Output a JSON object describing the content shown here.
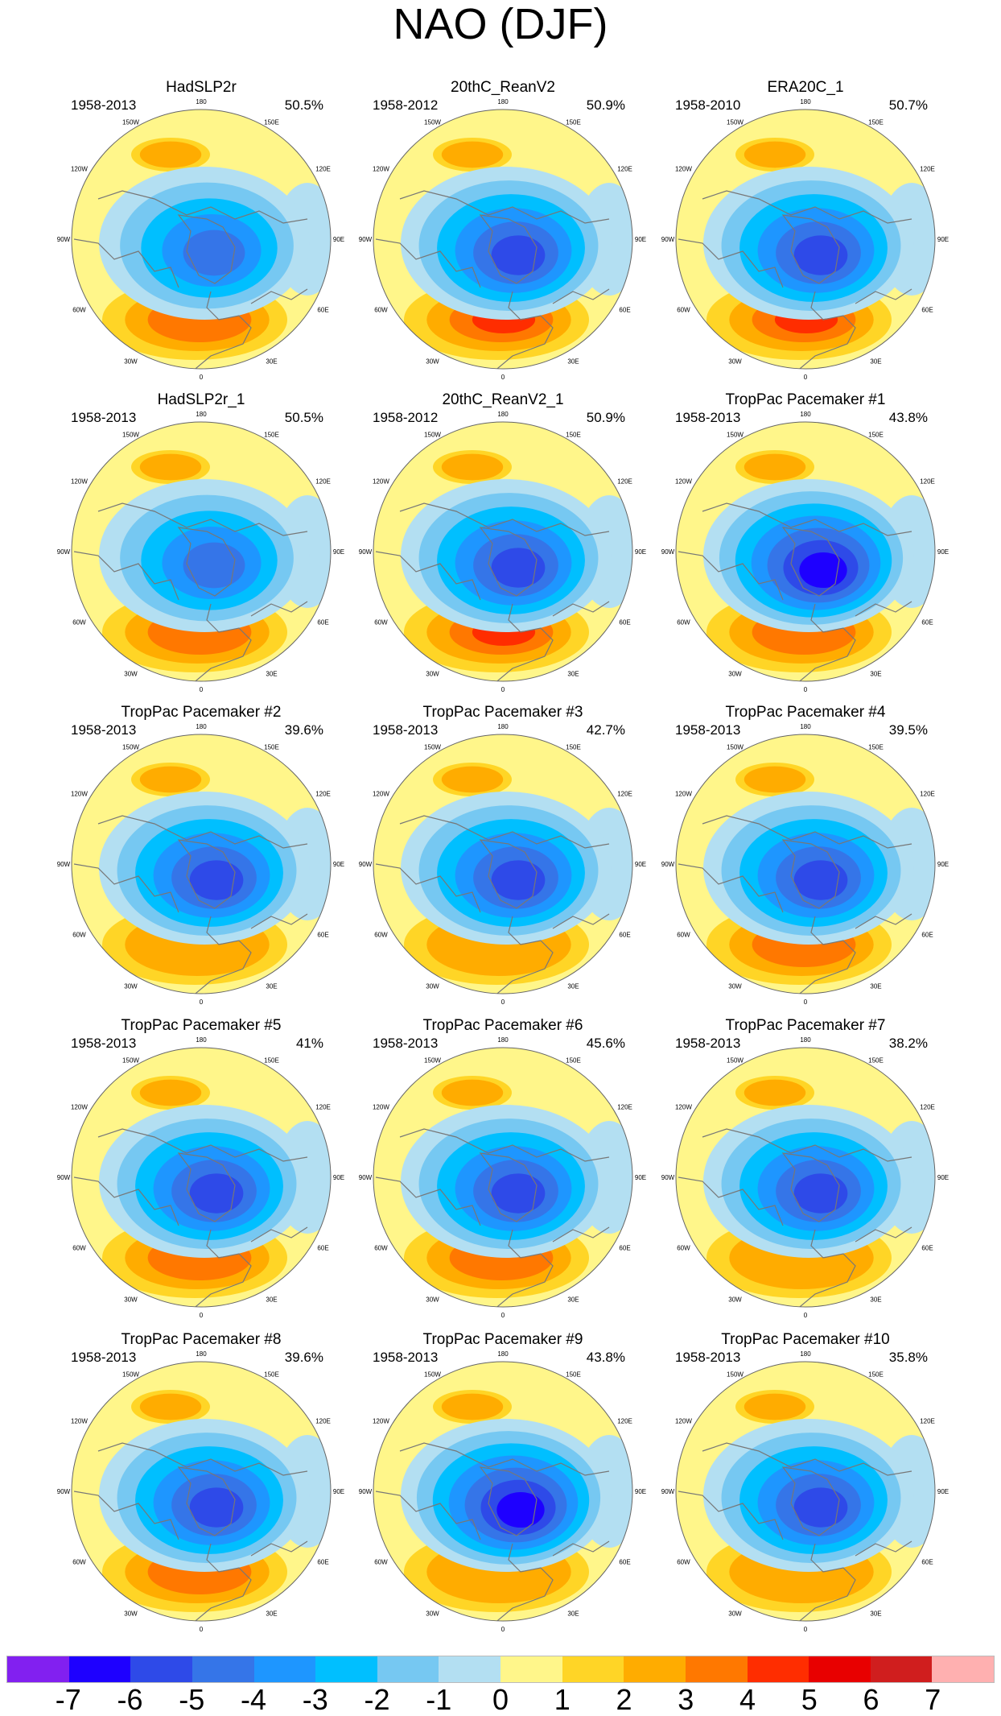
{
  "title": "NAO (DJF)",
  "chart_data": {
    "type": "heatmap",
    "title": "NAO (DJF)",
    "projection": "north-polar-stereographic",
    "longitude_labels": [
      "180",
      "150E",
      "120E",
      "90E",
      "60E",
      "30E",
      "0",
      "30W",
      "60W",
      "90W",
      "120W",
      "150W"
    ],
    "colorbar": {
      "tick_labels": [
        "-7",
        "-6",
        "-5",
        "-4",
        "-3",
        "-2",
        "-1",
        "0",
        "1",
        "2",
        "3",
        "4",
        "5",
        "6",
        "7"
      ],
      "colors": [
        "#8220f0",
        "#1e00ff",
        "#2e4ae8",
        "#3575e8",
        "#1e96ff",
        "#00bfff",
        "#76c8f2",
        "#b3dff2",
        "#fff68a",
        "#ffd526",
        "#ffac00",
        "#ff7800",
        "#ff2d00",
        "#e80000",
        "#d01e1e",
        "#ffb0b0"
      ]
    },
    "panels": [
      {
        "title": "HadSLP2r",
        "period": "1958-2013",
        "percent": "50.5%",
        "min_level": -5,
        "max_level": 3
      },
      {
        "title": "20thC_ReanV2",
        "period": "1958-2012",
        "percent": "50.9%",
        "min_level": -6,
        "max_level": 4
      },
      {
        "title": "ERA20C_1",
        "period": "1958-2010",
        "percent": "50.7%",
        "min_level": -6,
        "max_level": 4
      },
      {
        "title": "HadSLP2r_1",
        "period": "1958-2013",
        "percent": "50.5%",
        "min_level": -5,
        "max_level": 3
      },
      {
        "title": "20thC_ReanV2_1",
        "period": "1958-2012",
        "percent": "50.9%",
        "min_level": -6,
        "max_level": 4
      },
      {
        "title": "TropPac Pacemaker #1",
        "period": "1958-2013",
        "percent": "43.8%",
        "min_level": -7,
        "max_level": 3
      },
      {
        "title": "TropPac Pacemaker #2",
        "period": "1958-2013",
        "percent": "39.6%",
        "min_level": -6,
        "max_level": 2
      },
      {
        "title": "TropPac Pacemaker #3",
        "period": "1958-2013",
        "percent": "42.7%",
        "min_level": -6,
        "max_level": 2
      },
      {
        "title": "TropPac Pacemaker #4",
        "period": "1958-2013",
        "percent": "39.5%",
        "min_level": -6,
        "max_level": 3
      },
      {
        "title": "TropPac Pacemaker #5",
        "period": "1958-2013",
        "percent": "41%",
        "min_level": -6,
        "max_level": 3
      },
      {
        "title": "TropPac Pacemaker #6",
        "period": "1958-2013",
        "percent": "45.6%",
        "min_level": -6,
        "max_level": 3
      },
      {
        "title": "TropPac Pacemaker #7",
        "period": "1958-2013",
        "percent": "38.2%",
        "min_level": -6,
        "max_level": 2
      },
      {
        "title": "TropPac Pacemaker #8",
        "period": "1958-2013",
        "percent": "39.6%",
        "min_level": -6,
        "max_level": 3
      },
      {
        "title": "TropPac Pacemaker #9",
        "period": "1958-2013",
        "percent": "43.8%",
        "min_level": -7,
        "max_level": 2
      },
      {
        "title": "TropPac Pacemaker #10",
        "period": "1958-2013",
        "percent": "35.8%",
        "min_level": -6,
        "max_level": 2
      }
    ]
  }
}
